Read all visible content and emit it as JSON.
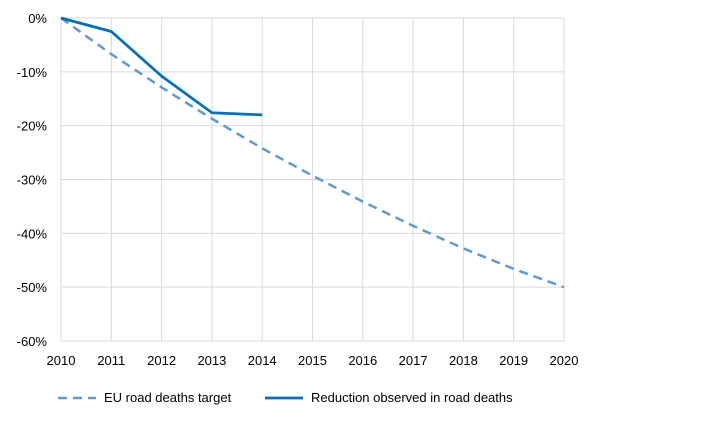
{
  "colors": {
    "target": "#5B9BD5",
    "observed": "#0070C0",
    "grid": "#D9D9D9",
    "axis": "#D9D9D9",
    "text": "#000000"
  },
  "chart_data": {
    "type": "line",
    "title": "",
    "xlabel": "",
    "ylabel": "",
    "x_ticks": [
      "2010",
      "2011",
      "2012",
      "2013",
      "2014",
      "2015",
      "2016",
      "2017",
      "2018",
      "2019",
      "2020"
    ],
    "y_ticks": [
      "0%",
      "-10%",
      "-20%",
      "-30%",
      "-40%",
      "-50%",
      "-60%"
    ],
    "xlim": [
      2010,
      2020
    ],
    "ylim": [
      -60,
      0
    ],
    "grid": true,
    "legend_position": "bottom-left",
    "series": [
      {
        "name": "EU road deaths target",
        "style": "dashed",
        "x": [
          2010,
          2011,
          2012,
          2013,
          2014,
          2015,
          2016,
          2017,
          2018,
          2019,
          2020
        ],
        "y": [
          0,
          -6.7,
          -12.9,
          -18.7,
          -24.2,
          -29.3,
          -34.1,
          -38.6,
          -42.8,
          -46.6,
          -50
        ]
      },
      {
        "name": "Reduction observed in road deaths",
        "style": "solid",
        "x": [
          2010,
          2011,
          2012,
          2013,
          2014
        ],
        "y": [
          0,
          -2.5,
          -10.8,
          -17.6,
          -18
        ]
      }
    ]
  }
}
